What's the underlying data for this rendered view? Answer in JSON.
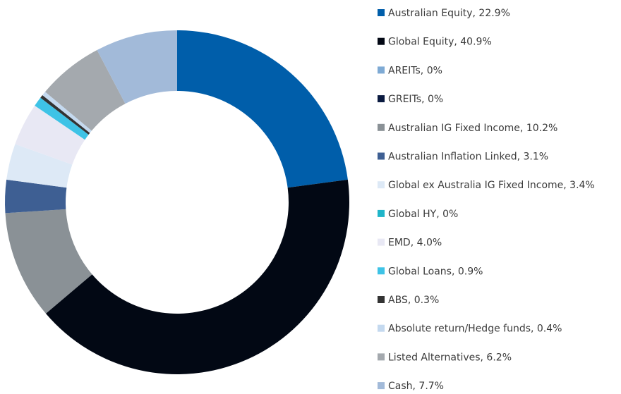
{
  "chart_data": {
    "type": "pie",
    "labels": [
      "Australian Equity, 22.9%",
      "Global Equity, 40.9%",
      "AREITs, 0%",
      "GREITs, 0%",
      "Australian IG Fixed Income, 10.2%",
      "Australian Inflation Linked, 3.1%",
      "Global ex Australia IG Fixed Income, 3.4%",
      "Global HY, 0%",
      "EMD, 4.0%",
      "Global Loans, 0.9%",
      "ABS, 0.3%",
      "Absolute return/Hedge funds, 0.4%",
      "Listed Alternatives, 6.2%",
      "Cash, 7.7%"
    ],
    "values": [
      22.9,
      40.9,
      0,
      0,
      10.2,
      3.1,
      3.4,
      0,
      4.0,
      0.9,
      0.3,
      0.4,
      6.2,
      7.7
    ],
    "colors": [
      "#005eaa",
      "#020814",
      "#7eaad4",
      "#0a1a40",
      "#8a9196",
      "#3e5f93",
      "#dde9f6",
      "#1fb5c9",
      "#e8e8f4",
      "#3ec3e6",
      "#333333",
      "#c4d9ef",
      "#a4a9ae",
      "#a2bad9"
    ],
    "donut": true
  }
}
